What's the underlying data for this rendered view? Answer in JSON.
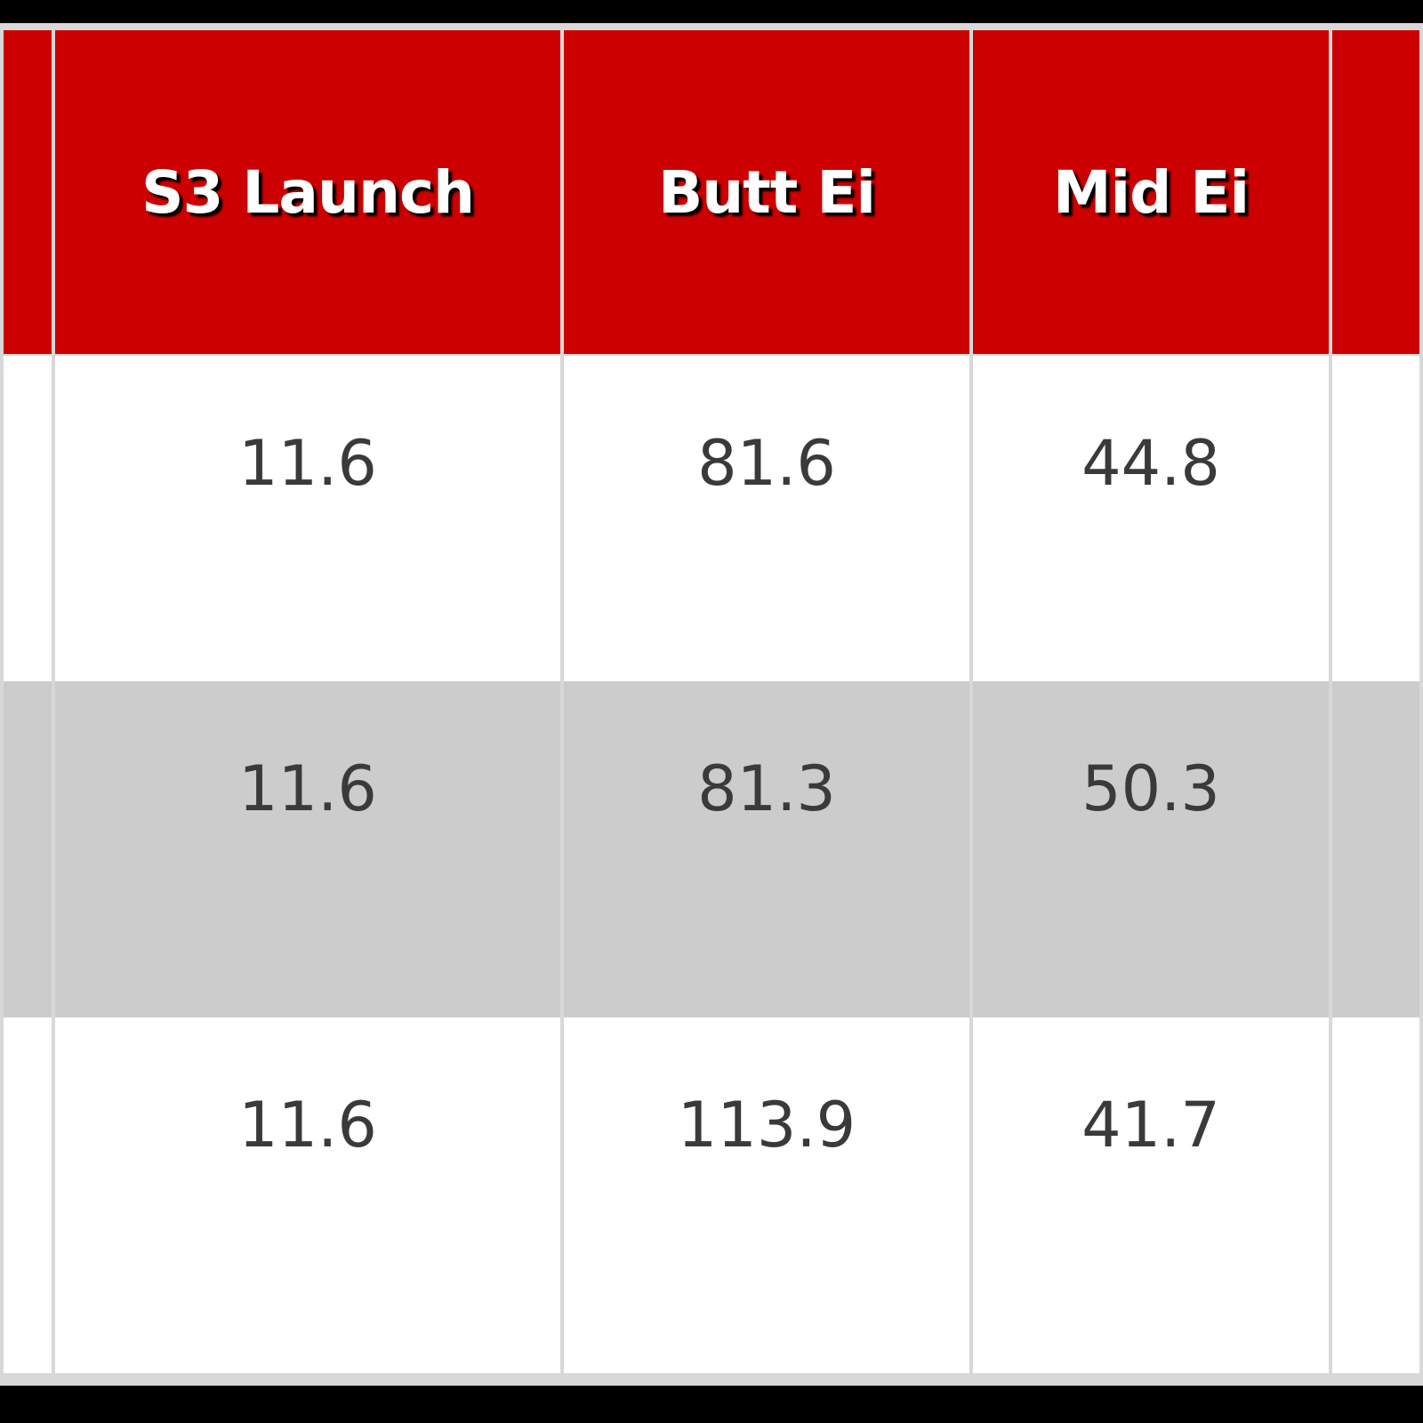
{
  "table": {
    "columns": [
      "",
      "S3 Launch",
      "Butt Ei",
      "Mid Ei",
      ""
    ],
    "rows": [
      [
        "",
        "11.6",
        "81.6",
        "44.8",
        ""
      ],
      [
        "",
        "11.6",
        "81.3",
        "50.3",
        ""
      ],
      [
        "",
        "11.6",
        "113.9",
        "41.7",
        ""
      ]
    ]
  },
  "colors": {
    "header": "#cc0000",
    "alt_row": "#cccccc"
  }
}
